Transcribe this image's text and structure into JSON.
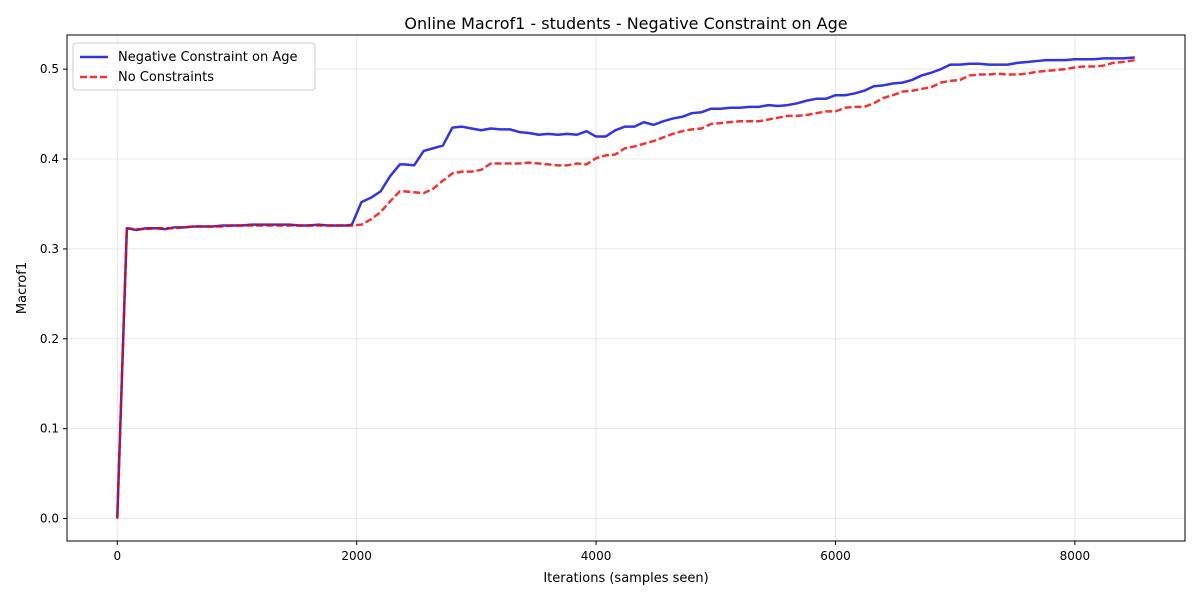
{
  "chart_data": {
    "type": "line",
    "title": "Online Macrof1 - students - Negative Constraint on Age",
    "xlabel": "Iterations (samples seen)",
    "ylabel": "Macrof1",
    "xlim": [
      -420,
      8920
    ],
    "ylim": [
      -0.025,
      0.538
    ],
    "xticks": [
      0,
      2000,
      4000,
      6000,
      8000
    ],
    "yticks": [
      0.0,
      0.1,
      0.2,
      0.3,
      0.4,
      0.5
    ],
    "xtick_labels": [
      "0",
      "2000",
      "4000",
      "6000",
      "8000"
    ],
    "ytick_labels": [
      "0.0",
      "0.1",
      "0.2",
      "0.3",
      "0.4",
      "0.5"
    ],
    "grid": true,
    "legend_position": "upper-left",
    "series": [
      {
        "name": "Negative Constraint on Age",
        "color": "#0000dd",
        "style": "solid",
        "x": [
          0,
          80,
          160,
          240,
          320,
          400,
          480,
          560,
          640,
          720,
          800,
          880,
          960,
          1040,
          1120,
          1200,
          1280,
          1360,
          1440,
          1520,
          1600,
          1680,
          1760,
          1840,
          1920,
          1960,
          2040,
          2120,
          2200,
          2280,
          2360,
          2400,
          2480,
          2560,
          2640,
          2720,
          2800,
          2880,
          2960,
          3040,
          3120,
          3200,
          3280,
          3360,
          3440,
          3520,
          3600,
          3680,
          3760,
          3840,
          3920,
          4000,
          4080,
          4160,
          4240,
          4320,
          4400,
          4480,
          4560,
          4640,
          4720,
          4800,
          4880,
          4960,
          5040,
          5120,
          5200,
          5280,
          5360,
          5440,
          5520,
          5600,
          5680,
          5760,
          5840,
          5920,
          6000,
          6080,
          6160,
          6240,
          6320,
          6400,
          6480,
          6560,
          6640,
          6720,
          6800,
          6880,
          6960,
          7040,
          7120,
          7200,
          7280,
          7360,
          7440,
          7520,
          7600,
          7680,
          7760,
          7840,
          7920,
          8000,
          8080,
          8160,
          8240,
          8320,
          8400,
          8500
        ],
        "values": [
          0.0,
          0.323,
          0.321,
          0.323,
          0.323,
          0.322,
          0.324,
          0.324,
          0.325,
          0.325,
          0.325,
          0.326,
          0.326,
          0.326,
          0.327,
          0.327,
          0.327,
          0.327,
          0.327,
          0.326,
          0.326,
          0.327,
          0.326,
          0.326,
          0.326,
          0.327,
          0.352,
          0.357,
          0.364,
          0.381,
          0.394,
          0.394,
          0.393,
          0.409,
          0.412,
          0.415,
          0.435,
          0.436,
          0.434,
          0.432,
          0.434,
          0.433,
          0.433,
          0.43,
          0.429,
          0.427,
          0.428,
          0.427,
          0.428,
          0.427,
          0.431,
          0.425,
          0.425,
          0.432,
          0.436,
          0.436,
          0.441,
          0.438,
          0.442,
          0.445,
          0.447,
          0.451,
          0.452,
          0.456,
          0.456,
          0.457,
          0.457,
          0.458,
          0.458,
          0.46,
          0.459,
          0.46,
          0.462,
          0.465,
          0.467,
          0.467,
          0.471,
          0.471,
          0.473,
          0.476,
          0.481,
          0.482,
          0.484,
          0.485,
          0.488,
          0.493,
          0.496,
          0.5,
          0.505,
          0.505,
          0.506,
          0.506,
          0.505,
          0.505,
          0.505,
          0.507,
          0.508,
          0.509,
          0.51,
          0.51,
          0.51,
          0.511,
          0.511,
          0.511,
          0.512,
          0.512,
          0.512,
          0.513
        ]
      },
      {
        "name": "No Constraints",
        "color": "#ee0000",
        "style": "dashed",
        "x": [
          0,
          80,
          160,
          240,
          320,
          400,
          480,
          560,
          640,
          720,
          800,
          880,
          960,
          1040,
          1120,
          1200,
          1280,
          1360,
          1440,
          1520,
          1600,
          1680,
          1760,
          1840,
          1920,
          1960,
          2040,
          2120,
          2200,
          2280,
          2360,
          2400,
          2480,
          2560,
          2640,
          2720,
          2800,
          2880,
          2960,
          3040,
          3120,
          3200,
          3280,
          3360,
          3440,
          3520,
          3600,
          3680,
          3760,
          3840,
          3920,
          4000,
          4080,
          4160,
          4240,
          4320,
          4400,
          4480,
          4560,
          4640,
          4720,
          4800,
          4880,
          4960,
          5040,
          5120,
          5200,
          5280,
          5360,
          5440,
          5520,
          5600,
          5680,
          5760,
          5840,
          5920,
          6000,
          6080,
          6160,
          6240,
          6320,
          6400,
          6480,
          6560,
          6640,
          6720,
          6800,
          6880,
          6960,
          7040,
          7120,
          7200,
          7280,
          7360,
          7440,
          7520,
          7600,
          7680,
          7760,
          7840,
          7920,
          8000,
          8080,
          8160,
          8240,
          8320,
          8400,
          8500
        ],
        "values": [
          0.0,
          0.323,
          0.322,
          0.322,
          0.323,
          0.323,
          0.323,
          0.324,
          0.325,
          0.325,
          0.325,
          0.325,
          0.326,
          0.326,
          0.326,
          0.326,
          0.326,
          0.326,
          0.326,
          0.326,
          0.326,
          0.326,
          0.326,
          0.326,
          0.326,
          0.326,
          0.327,
          0.333,
          0.341,
          0.353,
          0.364,
          0.364,
          0.363,
          0.362,
          0.367,
          0.376,
          0.384,
          0.386,
          0.386,
          0.388,
          0.395,
          0.395,
          0.395,
          0.395,
          0.396,
          0.395,
          0.394,
          0.393,
          0.393,
          0.395,
          0.394,
          0.401,
          0.404,
          0.405,
          0.412,
          0.414,
          0.417,
          0.42,
          0.424,
          0.428,
          0.431,
          0.433,
          0.434,
          0.439,
          0.44,
          0.441,
          0.442,
          0.442,
          0.442,
          0.444,
          0.446,
          0.448,
          0.448,
          0.449,
          0.451,
          0.453,
          0.453,
          0.457,
          0.458,
          0.458,
          0.462,
          0.468,
          0.471,
          0.475,
          0.476,
          0.478,
          0.48,
          0.485,
          0.487,
          0.488,
          0.493,
          0.494,
          0.494,
          0.495,
          0.494,
          0.494,
          0.495,
          0.497,
          0.498,
          0.499,
          0.5,
          0.502,
          0.503,
          0.503,
          0.504,
          0.507,
          0.508,
          0.51
        ]
      }
    ]
  }
}
